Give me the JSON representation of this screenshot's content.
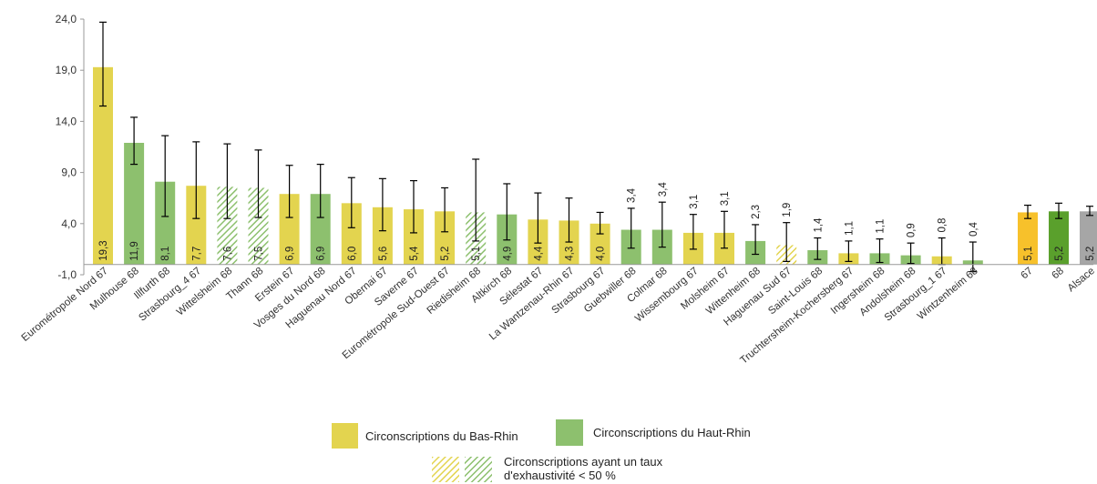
{
  "chart_data": {
    "type": "bar",
    "yticks": [
      "24,0",
      "19,0",
      "14,0",
      "9,0",
      "4,0",
      "-1,0"
    ],
    "ylim": [
      -1,
      24
    ],
    "grid": false,
    "error_bars": true,
    "colors": {
      "bas_rhin": "#e3d44f",
      "haut_rhin": "#8dc06e",
      "summary_67": "#f7c12b",
      "summary_68": "#5aa02c",
      "alsace": "#a6a6a6",
      "hatch_bas_rhin": "#e3d44f",
      "hatch_haut_rhin": "#8dc06e",
      "error_bar": "#000000"
    },
    "bars": [
      {
        "name": "Eurométropole Nord 67",
        "value": 19.3,
        "label": "19,3",
        "low": 15.5,
        "high": 23.7,
        "group": "bas_rhin",
        "hatched": false
      },
      {
        "name": "Mulhouse 68",
        "value": 11.9,
        "label": "11,9",
        "low": 9.8,
        "high": 14.4,
        "group": "haut_rhin",
        "hatched": false
      },
      {
        "name": "Illfurth 68",
        "value": 8.1,
        "label": "8,1",
        "low": 4.7,
        "high": 12.6,
        "group": "haut_rhin",
        "hatched": false
      },
      {
        "name": "Strasbourg_4 67",
        "value": 7.7,
        "label": "7,7",
        "low": 4.5,
        "high": 12.0,
        "group": "bas_rhin",
        "hatched": false
      },
      {
        "name": "Wittelsheim 68",
        "value": 7.6,
        "label": "7,6",
        "low": 4.5,
        "high": 11.8,
        "group": "haut_rhin",
        "hatched": true
      },
      {
        "name": "Thann 68",
        "value": 7.5,
        "label": "7,5",
        "low": 4.6,
        "high": 11.2,
        "group": "haut_rhin",
        "hatched": true
      },
      {
        "name": "Erstein 67",
        "value": 6.9,
        "label": "6,9",
        "low": 4.6,
        "high": 9.7,
        "group": "bas_rhin",
        "hatched": false
      },
      {
        "name": "Vosges du Nord 68",
        "value": 6.9,
        "label": "6,9",
        "low": 4.6,
        "high": 9.8,
        "group": "haut_rhin",
        "hatched": false
      },
      {
        "name": "Haguenau Nord 67",
        "value": 6.0,
        "label": "6,0",
        "low": 3.6,
        "high": 8.5,
        "group": "bas_rhin",
        "hatched": false
      },
      {
        "name": "Obernai 67",
        "value": 5.6,
        "label": "5,6",
        "low": 3.3,
        "high": 8.4,
        "group": "bas_rhin",
        "hatched": false
      },
      {
        "name": "Saverne 67",
        "value": 5.4,
        "label": "5,4",
        "low": 3.1,
        "high": 8.2,
        "group": "bas_rhin",
        "hatched": false
      },
      {
        "name": "Eurométropole Sud-Ouest 67",
        "value": 5.2,
        "label": "5,2",
        "low": 3.2,
        "high": 7.5,
        "group": "bas_rhin",
        "hatched": false
      },
      {
        "name": "Riedisheim 68",
        "value": 5.1,
        "label": "5,1",
        "low": 2.3,
        "high": 10.3,
        "group": "haut_rhin",
        "hatched": true
      },
      {
        "name": "Altkirch 68",
        "value": 4.9,
        "label": "4,9",
        "low": 2.4,
        "high": 7.9,
        "group": "haut_rhin",
        "hatched": false
      },
      {
        "name": "Sélestat 67",
        "value": 4.4,
        "label": "4,4",
        "low": 2.1,
        "high": 7.0,
        "group": "bas_rhin",
        "hatched": false
      },
      {
        "name": "La Wantzenau-Rhin 67",
        "value": 4.3,
        "label": "4,3",
        "low": 2.2,
        "high": 6.5,
        "group": "bas_rhin",
        "hatched": false
      },
      {
        "name": "Strasbourg 67",
        "value": 4.0,
        "label": "4,0",
        "low": 3.0,
        "high": 5.1,
        "group": "bas_rhin",
        "hatched": false
      },
      {
        "name": "Guebwiller 68",
        "value": 3.4,
        "label": "3,4",
        "low": 1.6,
        "high": 5.5,
        "group": "haut_rhin",
        "hatched": false
      },
      {
        "name": "Colmar 68",
        "value": 3.4,
        "label": "3,4",
        "low": 1.7,
        "high": 6.1,
        "group": "haut_rhin",
        "hatched": false
      },
      {
        "name": "Wissembourg 67",
        "value": 3.1,
        "label": "3,1",
        "low": 1.5,
        "high": 4.9,
        "group": "bas_rhin",
        "hatched": false
      },
      {
        "name": "Molsheim 67",
        "value": 3.1,
        "label": "3,1",
        "low": 1.6,
        "high": 5.2,
        "group": "bas_rhin",
        "hatched": false
      },
      {
        "name": "Wittenheim 68",
        "value": 2.3,
        "label": "2,3",
        "low": 1.0,
        "high": 3.9,
        "group": "haut_rhin",
        "hatched": false
      },
      {
        "name": "Haguenau Sud 67",
        "value": 1.9,
        "label": "1,9",
        "low": 0.3,
        "high": 4.1,
        "group": "bas_rhin",
        "hatched": true
      },
      {
        "name": "Saint-Louis 68",
        "value": 1.4,
        "label": "1,4",
        "low": 0.5,
        "high": 2.6,
        "group": "haut_rhin",
        "hatched": false
      },
      {
        "name": "Truchtersheim-Kochersberg 67",
        "value": 1.1,
        "label": "1,1",
        "low": 0.3,
        "high": 2.3,
        "group": "bas_rhin",
        "hatched": false
      },
      {
        "name": "Ingersheim 68",
        "value": 1.1,
        "label": "1,1",
        "low": 0.2,
        "high": 2.5,
        "group": "haut_rhin",
        "hatched": false
      },
      {
        "name": "Andolsheim 68",
        "value": 0.9,
        "label": "0,9",
        "low": 0.1,
        "high": 2.1,
        "group": "haut_rhin",
        "hatched": false
      },
      {
        "name": "Strasbourg_1 67",
        "value": 0.8,
        "label": "0,8",
        "low": 0.0,
        "high": 2.6,
        "group": "bas_rhin",
        "hatched": false
      },
      {
        "name": "Wintzenheim 68",
        "value": 0.4,
        "label": "0,4",
        "low": -0.7,
        "high": 2.2,
        "group": "haut_rhin",
        "hatched": false
      },
      {
        "name": "67",
        "value": 5.1,
        "label": "5,1",
        "low": 4.5,
        "high": 5.8,
        "group": "summary_67",
        "hatched": false
      },
      {
        "name": "68",
        "value": 5.2,
        "label": "5,2",
        "low": 4.5,
        "high": 6.0,
        "group": "summary_68",
        "hatched": false
      },
      {
        "name": "Alsace",
        "value": 5.2,
        "label": "5,2",
        "low": 4.8,
        "high": 5.7,
        "group": "alsace",
        "hatched": false
      }
    ],
    "legend": {
      "bas_rhin": "Circonscriptions du Bas-Rhin",
      "haut_rhin": "Circonscriptions du Haut-Rhin",
      "hatched_line1": "Circonscriptions ayant un taux",
      "hatched_line2": "d'exhaustivité < 50 %"
    }
  }
}
